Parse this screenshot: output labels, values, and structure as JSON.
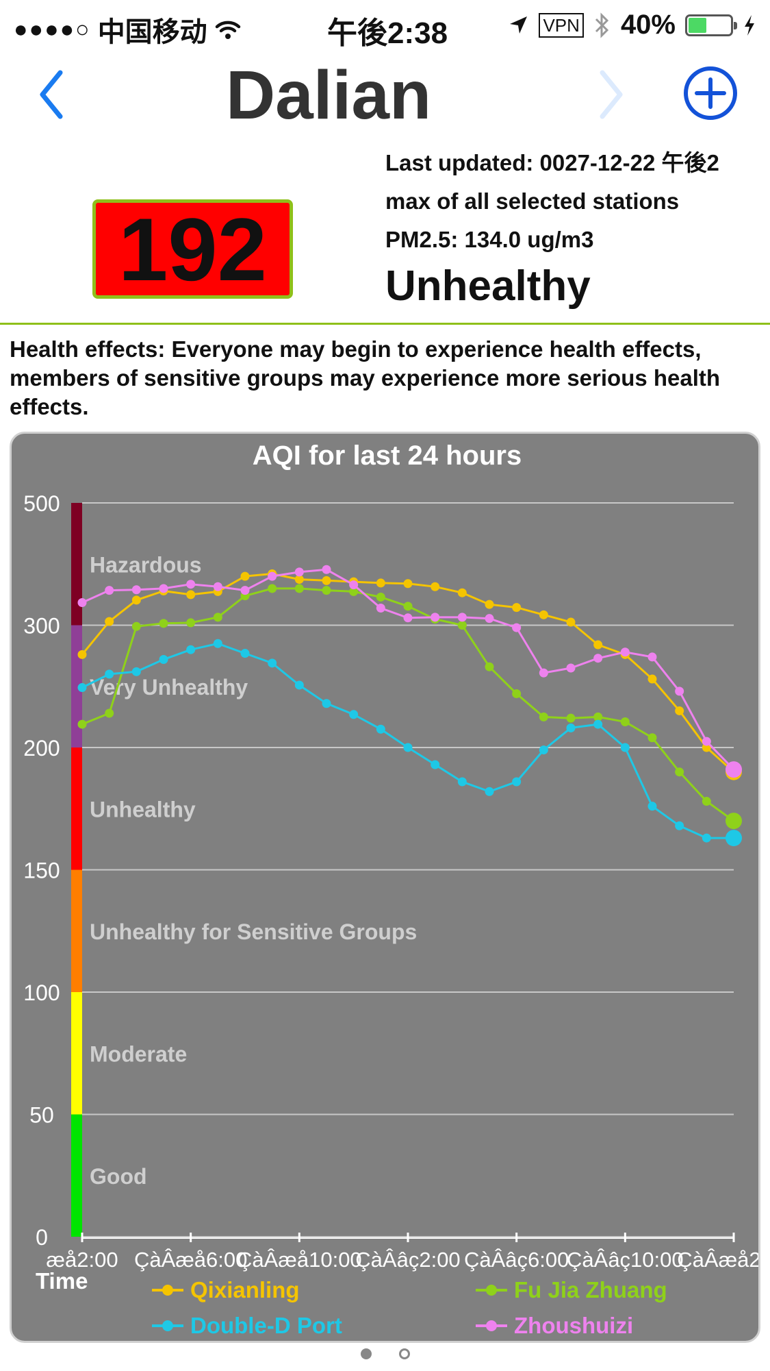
{
  "status_bar": {
    "signal": "●●●●○",
    "carrier": "中国移动",
    "time": "午後2:38",
    "vpn": "VPN",
    "battery": "40%"
  },
  "nav": {
    "title": "Dalian"
  },
  "summary": {
    "aqi": "192",
    "last_updated": "Last updated: 0027-12-22 午後2",
    "scope": "max of all selected stations",
    "pm25": "PM2.5: 134.0 ug/m3",
    "level": "Unhealthy",
    "colors": {
      "box": "#ff0000",
      "border": "#8fc01a"
    }
  },
  "health": {
    "text": "Health effects: Everyone may begin to experience health effects, members of sensitive groups may experience more serious health effects."
  },
  "chart_data": {
    "type": "line",
    "title": "AQI for last 24 hours",
    "xlabel": "Time",
    "ylabel": "",
    "ylim": [
      0,
      500
    ],
    "y_ticks": [
      "0",
      "50",
      "100",
      "150",
      "200",
      "300",
      "500"
    ],
    "x_tick_labels": [
      "æå2:00",
      "ÇàÂæå6:00",
      "ÇàÂæå10:00",
      "ÇàÂâç2:00",
      "ÇàÂâç6:00",
      "ÇàÂâç10:00",
      "ÇàÂæå2:00"
    ],
    "bands": [
      {
        "label": "Good",
        "from": 0,
        "to": 50,
        "color": "#00e400"
      },
      {
        "label": "Moderate",
        "from": 50,
        "to": 100,
        "color": "#ffff00"
      },
      {
        "label": "Unhealthy for Sensitive Groups",
        "from": 100,
        "to": 150,
        "color": "#ff7e00"
      },
      {
        "label": "Unhealthy",
        "from": 150,
        "to": 200,
        "color": "#ff0000"
      },
      {
        "label": "Very Unhealthy",
        "from": 200,
        "to": 300,
        "color": "#8f3f97"
      },
      {
        "label": "Hazardous",
        "from": 300,
        "to": 500,
        "color": "#7e0023"
      }
    ],
    "series": [
      {
        "name": "Qixianling",
        "color": "#f5c400",
        "values": [
          276,
          306,
          341,
          356,
          350,
          355,
          380,
          384,
          375,
          373,
          371,
          369,
          368,
          363,
          353,
          334,
          329,
          317,
          305,
          284,
          276,
          256,
          230,
          200,
          190
        ]
      },
      {
        "name": "Fu Jia Zhuang",
        "color": "#8fd11a",
        "values": [
          219,
          228,
          299,
          303,
          304,
          313,
          348,
          360,
          360,
          357,
          355,
          346,
          331,
          310,
          300,
          266,
          244,
          225,
          224,
          225,
          221,
          208,
          190,
          178,
          170
        ]
      },
      {
        "name": "Double-D Port",
        "color": "#1ec8e6",
        "values": [
          249,
          260,
          262,
          272,
          280,
          285,
          277,
          269,
          251,
          236,
          227,
          215,
          200,
          193,
          186,
          182,
          186,
          199,
          216,
          219,
          200,
          176,
          168,
          163,
          163
        ]
      },
      {
        "name": "Zhoushuizi",
        "color": "#ee82ee",
        "values": [
          337,
          357,
          358,
          360,
          367,
          363,
          357,
          380,
          387,
          391,
          366,
          328,
          312,
          313,
          313,
          311,
          298,
          261,
          265,
          273,
          278,
          274,
          246,
          205,
          191
        ]
      }
    ]
  },
  "pager": {
    "pages": 2,
    "current": 0
  }
}
